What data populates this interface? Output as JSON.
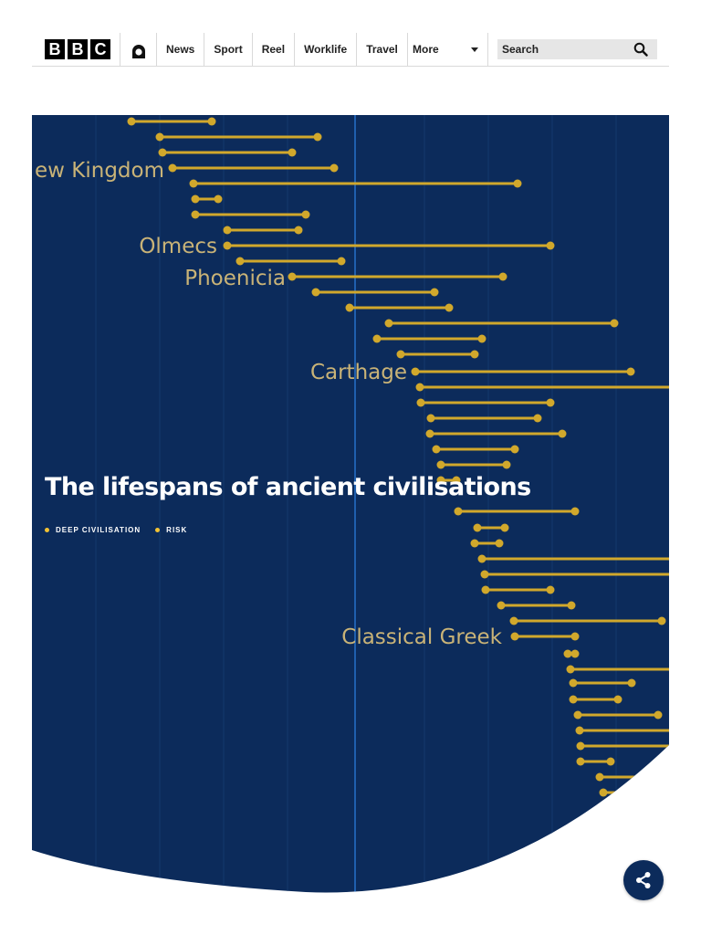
{
  "header": {
    "logo_letters": [
      "B",
      "B",
      "C"
    ],
    "account_icon": "account-icon",
    "nav": [
      {
        "label": "News"
      },
      {
        "label": "Sport"
      },
      {
        "label": "Reel"
      },
      {
        "label": "Worklife"
      },
      {
        "label": "Travel"
      }
    ],
    "more_label": "More",
    "search_placeholder": "Search",
    "search_icon": "search-icon"
  },
  "hero": {
    "title": "The lifespans of ancient civilisations",
    "tags": [
      "DEEP CIVILISATION",
      "RISK"
    ],
    "background_color": "#0c2b5b",
    "bar_color": "#d1a82c",
    "label_color": "#c9b377",
    "civilisation_labels": [
      "ew Kingdom",
      "Olmecs",
      "Phoenicia",
      "Carthage",
      "Classical Greek"
    ]
  },
  "share": {
    "icon": "share-icon"
  }
}
